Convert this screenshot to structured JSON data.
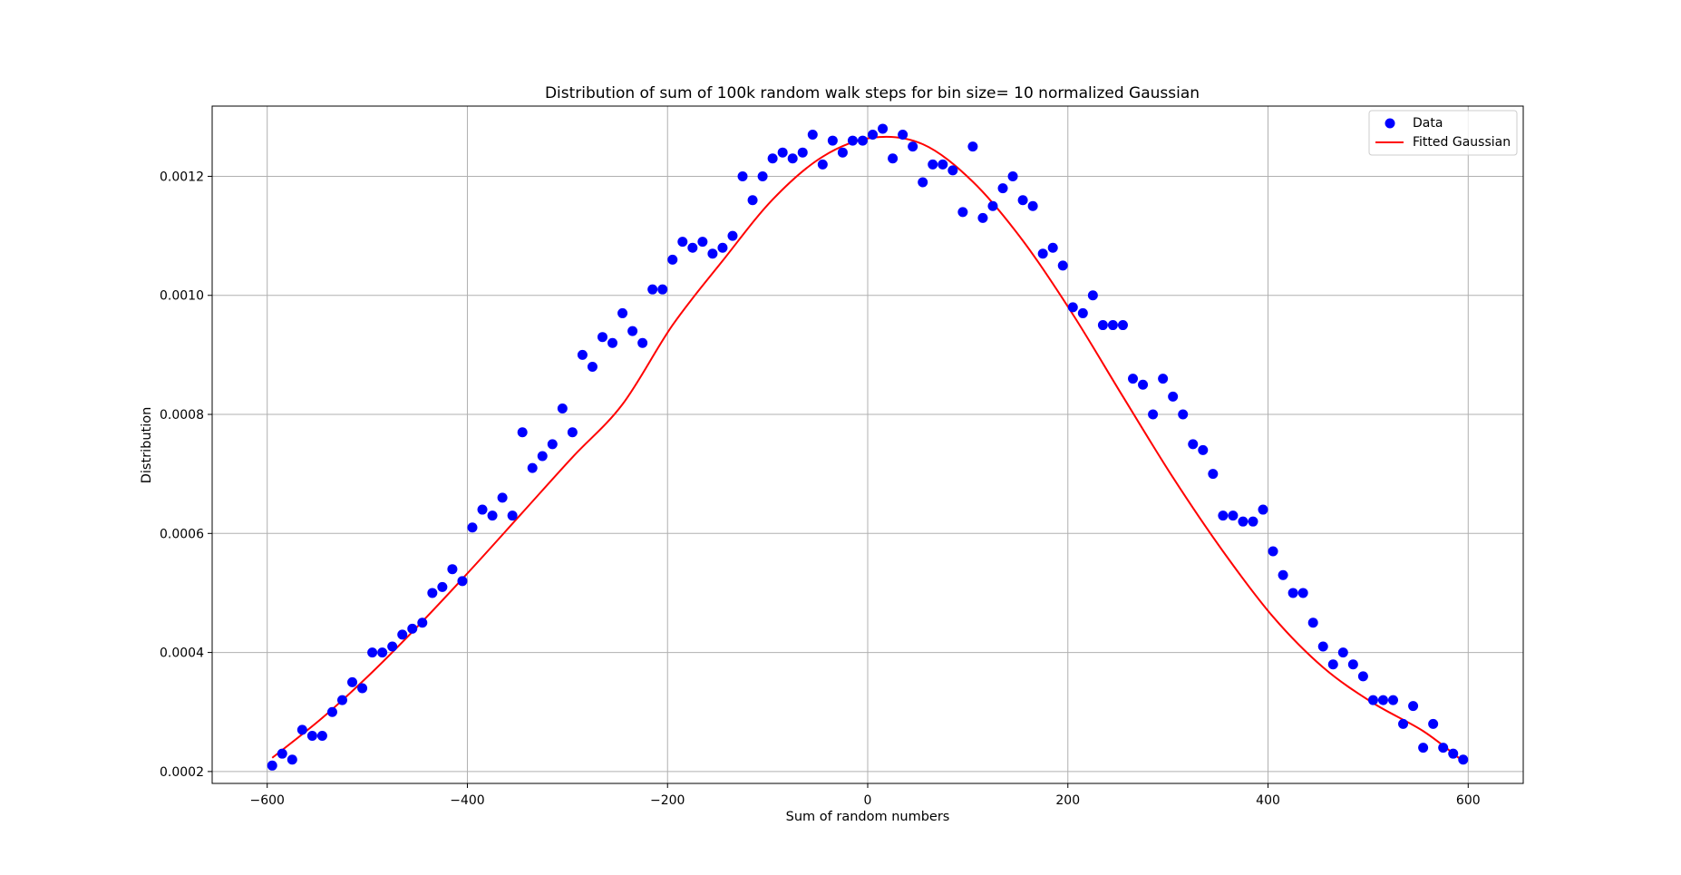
{
  "chart_data": {
    "type": "scatter",
    "title": "Distribution of sum of 100k random walk steps for bin size= 10 normalized Gaussian",
    "xlabel": "Sum of random numbers",
    "ylabel": "Distribution",
    "xlim": [
      -655,
      655
    ],
    "ylim": [
      0.00018,
      0.001318
    ],
    "xticks": [
      -600,
      -400,
      -200,
      0,
      200,
      400,
      600
    ],
    "xtick_labels": [
      "−600",
      "−400",
      "−200",
      "0",
      "200",
      "400",
      "600"
    ],
    "yticks": [
      0.0002,
      0.0004,
      0.0006,
      0.0008,
      0.001,
      0.0012
    ],
    "ytick_labels": [
      "0.0002",
      "0.0004",
      "0.0006",
      "0.0008",
      "0.0010",
      "0.0012"
    ],
    "grid": true,
    "legend_position": "top-right",
    "series": [
      {
        "name": "Data",
        "kind": "scatter",
        "color": "#0000ff",
        "x": [
          -595,
          -585,
          -575,
          -565,
          -555,
          -545,
          -535,
          -525,
          -515,
          -505,
          -495,
          -485,
          -475,
          -465,
          -455,
          -445,
          -435,
          -425,
          -415,
          -405,
          -395,
          -385,
          -375,
          -365,
          -355,
          -345,
          -335,
          -325,
          -315,
          -305,
          -295,
          -285,
          -275,
          -265,
          -255,
          -245,
          -235,
          -225,
          -215,
          -205,
          -195,
          -185,
          -175,
          -165,
          -155,
          -145,
          -135,
          -125,
          -115,
          -105,
          -95,
          -85,
          -75,
          -65,
          -55,
          -45,
          -35,
          -25,
          -15,
          -5,
          5,
          15,
          25,
          35,
          45,
          55,
          65,
          75,
          85,
          95,
          105,
          115,
          125,
          135,
          145,
          155,
          165,
          175,
          185,
          195,
          205,
          215,
          225,
          235,
          245,
          255,
          265,
          275,
          285,
          295,
          305,
          315,
          325,
          335,
          345,
          355,
          365,
          375,
          385,
          395,
          405,
          415,
          425,
          435,
          445,
          455,
          465,
          475,
          485,
          495,
          505,
          515,
          525,
          535,
          545,
          555,
          565,
          575,
          585,
          595
        ],
        "y": [
          0.00021,
          0.00023,
          0.00022,
          0.00027,
          0.00026,
          0.00026,
          0.0003,
          0.00032,
          0.00035,
          0.00034,
          0.0004,
          0.0004,
          0.00041,
          0.00043,
          0.00044,
          0.00045,
          0.0005,
          0.00051,
          0.00054,
          0.00052,
          0.00061,
          0.00064,
          0.00063,
          0.00066,
          0.00063,
          0.00077,
          0.00071,
          0.00073,
          0.00075,
          0.00081,
          0.00077,
          0.0009,
          0.00088,
          0.00093,
          0.00092,
          0.00097,
          0.00094,
          0.00092,
          0.00101,
          0.00101,
          0.00106,
          0.00109,
          0.00108,
          0.00109,
          0.00107,
          0.00108,
          0.0011,
          0.0012,
          0.00116,
          0.0012,
          0.00123,
          0.00124,
          0.00123,
          0.00124,
          0.00127,
          0.00122,
          0.00126,
          0.00124,
          0.00126,
          0.00126,
          0.00127,
          0.00128,
          0.00123,
          0.00127,
          0.00125,
          0.00119,
          0.00122,
          0.00122,
          0.00121,
          0.00114,
          0.00125,
          0.00113,
          0.00115,
          0.00118,
          0.0012,
          0.00116,
          0.00115,
          0.00107,
          0.00108,
          0.00105,
          0.00098,
          0.00097,
          0.001,
          0.00095,
          0.00095,
          0.00095,
          0.00086,
          0.00085,
          0.0008,
          0.00086,
          0.00083,
          0.0008,
          0.00075,
          0.00074,
          0.0007,
          0.00063,
          0.00063,
          0.00062,
          0.00062,
          0.00064,
          0.00057,
          0.00053,
          0.0005,
          0.0005,
          0.00045,
          0.00041,
          0.00038,
          0.0004,
          0.00038,
          0.00036,
          0.00032,
          0.00032,
          0.00032,
          0.00028,
          0.00031,
          0.00024,
          0.00028,
          0.00024,
          0.00023,
          0.00022
        ]
      },
      {
        "name": "Fitted Gaussian",
        "kind": "line",
        "color": "#ff0000",
        "x": [
          -595,
          -545,
          -495,
          -445,
          -395,
          -345,
          -295,
          -245,
          -195,
          -145,
          -95,
          -45,
          5,
          55,
          105,
          155,
          205,
          255,
          305,
          355,
          405,
          455,
          505,
          555,
          595
        ],
        "y": [
          0.000223,
          0.00029,
          0.000367,
          0.000452,
          0.000542,
          0.000635,
          0.000728,
          0.000817,
          0.00095,
          0.001058,
          0.001161,
          0.001233,
          0.001265,
          0.001254,
          0.001191,
          0.001092,
          0.000968,
          0.00083,
          0.000694,
          0.00057,
          0.00046,
          0.000375,
          0.000315,
          0.000268,
          0.000217
        ]
      }
    ]
  }
}
